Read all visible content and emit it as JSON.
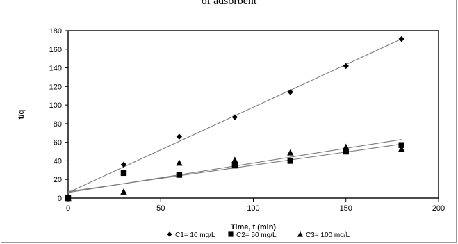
{
  "caption": "of adsorbent",
  "chart_data": {
    "type": "scatter",
    "title": "",
    "xlabel": "Time, t (min)",
    "ylabel": "t/q",
    "xlim": [
      0,
      200
    ],
    "ylim": [
      0,
      180
    ],
    "x_ticks": [
      0,
      50,
      100,
      150,
      200
    ],
    "y_ticks": [
      0,
      20,
      40,
      60,
      80,
      100,
      120,
      140,
      160,
      180
    ],
    "grid": false,
    "legend_position": "bottom",
    "trendlines": true,
    "series": [
      {
        "name": "C1= 10 mg/L",
        "marker": "diamond",
        "x": [
          0,
          30,
          60,
          90,
          120,
          150,
          180
        ],
        "y": [
          0,
          36,
          66,
          87,
          114,
          142,
          171
        ],
        "trend": [
          [
            0,
            6
          ],
          [
            180,
            171
          ]
        ]
      },
      {
        "name": "C2= 50 mg/L",
        "marker": "square",
        "x": [
          0,
          30,
          60,
          90,
          120,
          150,
          180
        ],
        "y": [
          0,
          27,
          25,
          35,
          40,
          50,
          57
        ],
        "trend": [
          [
            0,
            7
          ],
          [
            180,
            58
          ]
        ]
      },
      {
        "name": "C3= 100 mg/L",
        "marker": "triangle",
        "x": [
          0,
          30,
          60,
          90,
          120,
          150,
          180
        ],
        "y": [
          0,
          7,
          38,
          41,
          49,
          55,
          53
        ],
        "trend": [
          [
            0,
            6
          ],
          [
            180,
            63
          ]
        ]
      }
    ],
    "colors": {
      "marker": "#000000",
      "trendline": "#7a7a7a",
      "axis": "#000000"
    }
  }
}
